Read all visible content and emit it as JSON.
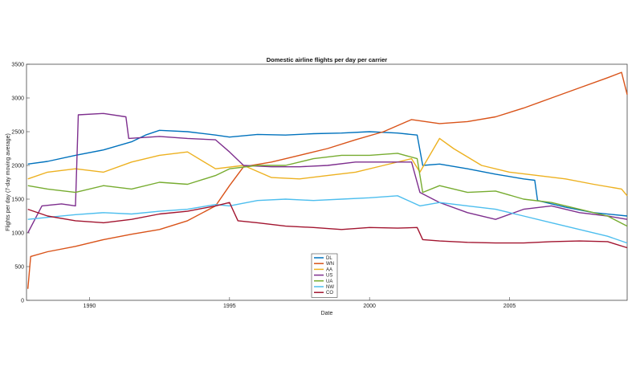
{
  "chart_data": {
    "type": "line",
    "title": "Domestic airline flights per day per carrier",
    "xlabel": "Date",
    "ylabel": "Flights per day (7-day moving average)",
    "xlim": [
      1987.75,
      2009.2
    ],
    "ylim": [
      0,
      3500
    ],
    "xticks": [
      1990,
      1995,
      2000,
      2005
    ],
    "yticks": [
      0,
      500,
      1000,
      1500,
      2000,
      2500,
      3000,
      3500
    ],
    "grid": false,
    "legend_position": "bottom-center",
    "series": [
      {
        "name": "DL",
        "color": "#0072BD",
        "points": [
          [
            1987.8,
            2020
          ],
          [
            1988.5,
            2060
          ],
          [
            1989.5,
            2150
          ],
          [
            1990.5,
            2230
          ],
          [
            1991.5,
            2350
          ],
          [
            1992.0,
            2450
          ],
          [
            1992.5,
            2520
          ],
          [
            1993.5,
            2500
          ],
          [
            1994.5,
            2450
          ],
          [
            1995.0,
            2420
          ],
          [
            1996.0,
            2460
          ],
          [
            1997.0,
            2450
          ],
          [
            1998.0,
            2470
          ],
          [
            1999.0,
            2480
          ],
          [
            2000.0,
            2500
          ],
          [
            2001.0,
            2480
          ],
          [
            2001.7,
            2450
          ],
          [
            2001.9,
            2000
          ],
          [
            2002.5,
            2020
          ],
          [
            2003.5,
            1950
          ],
          [
            2004.5,
            1870
          ],
          [
            2005.5,
            1800
          ],
          [
            2005.9,
            1780
          ],
          [
            2006.0,
            1480
          ],
          [
            2007.0,
            1380
          ],
          [
            2008.0,
            1300
          ],
          [
            2009.2,
            1250
          ]
        ]
      },
      {
        "name": "WN",
        "color": "#D95319",
        "points": [
          [
            1987.8,
            170
          ],
          [
            1987.9,
            650
          ],
          [
            1988.5,
            720
          ],
          [
            1989.5,
            800
          ],
          [
            1990.5,
            900
          ],
          [
            1991.5,
            980
          ],
          [
            1992.5,
            1050
          ],
          [
            1993.5,
            1180
          ],
          [
            1994.5,
            1400
          ],
          [
            1995.0,
            1700
          ],
          [
            1995.5,
            1980
          ],
          [
            1996.5,
            2050
          ],
          [
            1997.5,
            2150
          ],
          [
            1998.5,
            2250
          ],
          [
            1999.5,
            2380
          ],
          [
            2000.5,
            2500
          ],
          [
            2001.5,
            2680
          ],
          [
            2002.5,
            2620
          ],
          [
            2003.5,
            2650
          ],
          [
            2004.5,
            2720
          ],
          [
            2005.5,
            2850
          ],
          [
            2006.5,
            3000
          ],
          [
            2007.5,
            3150
          ],
          [
            2008.5,
            3300
          ],
          [
            2009.0,
            3380
          ],
          [
            2009.2,
            3050
          ]
        ]
      },
      {
        "name": "AA",
        "color": "#EDB120",
        "points": [
          [
            1987.8,
            1800
          ],
          [
            1988.5,
            1900
          ],
          [
            1989.5,
            1950
          ],
          [
            1990.5,
            1900
          ],
          [
            1991.5,
            2050
          ],
          [
            1992.5,
            2150
          ],
          [
            1993.5,
            2200
          ],
          [
            1994.5,
            1950
          ],
          [
            1995.5,
            2000
          ],
          [
            1996.5,
            1820
          ],
          [
            1997.5,
            1800
          ],
          [
            1998.5,
            1850
          ],
          [
            1999.5,
            1900
          ],
          [
            2000.5,
            2000
          ],
          [
            2001.5,
            2100
          ],
          [
            2001.8,
            1900
          ],
          [
            2002.5,
            2400
          ],
          [
            2003.0,
            2250
          ],
          [
            2004.0,
            2000
          ],
          [
            2005.0,
            1900
          ],
          [
            2006.0,
            1850
          ],
          [
            2007.0,
            1800
          ],
          [
            2008.0,
            1720
          ],
          [
            2009.0,
            1650
          ],
          [
            2009.2,
            1550
          ]
        ]
      },
      {
        "name": "US",
        "color": "#7E2F8E",
        "points": [
          [
            1987.8,
            1000
          ],
          [
            1988.3,
            1400
          ],
          [
            1989.0,
            1430
          ],
          [
            1989.5,
            1400
          ],
          [
            1989.6,
            2750
          ],
          [
            1990.5,
            2770
          ],
          [
            1991.3,
            2720
          ],
          [
            1991.4,
            2400
          ],
          [
            1992.5,
            2430
          ],
          [
            1993.5,
            2400
          ],
          [
            1994.5,
            2380
          ],
          [
            1995.0,
            2200
          ],
          [
            1995.5,
            2000
          ],
          [
            1996.5,
            1980
          ],
          [
            1997.5,
            1980
          ],
          [
            1998.5,
            2000
          ],
          [
            1999.5,
            2050
          ],
          [
            2000.5,
            2050
          ],
          [
            2001.5,
            2050
          ],
          [
            2001.8,
            1600
          ],
          [
            2002.5,
            1450
          ],
          [
            2003.5,
            1300
          ],
          [
            2004.5,
            1200
          ],
          [
            2005.5,
            1350
          ],
          [
            2006.5,
            1400
          ],
          [
            2007.5,
            1300
          ],
          [
            2008.5,
            1250
          ],
          [
            2009.2,
            1200
          ]
        ]
      },
      {
        "name": "UA",
        "color": "#77AC30",
        "points": [
          [
            1987.8,
            1700
          ],
          [
            1988.5,
            1650
          ],
          [
            1989.5,
            1600
          ],
          [
            1990.5,
            1700
          ],
          [
            1991.5,
            1650
          ],
          [
            1992.5,
            1750
          ],
          [
            1993.5,
            1720
          ],
          [
            1994.5,
            1850
          ],
          [
            1995.0,
            1950
          ],
          [
            1996.0,
            2000
          ],
          [
            1997.0,
            2000
          ],
          [
            1998.0,
            2100
          ],
          [
            1999.0,
            2150
          ],
          [
            2000.0,
            2150
          ],
          [
            2001.0,
            2180
          ],
          [
            2001.7,
            2100
          ],
          [
            2001.9,
            1600
          ],
          [
            2002.5,
            1700
          ],
          [
            2003.5,
            1600
          ],
          [
            2004.5,
            1620
          ],
          [
            2005.5,
            1500
          ],
          [
            2006.5,
            1450
          ],
          [
            2007.5,
            1350
          ],
          [
            2008.5,
            1250
          ],
          [
            2009.2,
            1100
          ]
        ]
      },
      {
        "name": "NW",
        "color": "#4DBEEE",
        "points": [
          [
            1987.8,
            1200
          ],
          [
            1988.5,
            1230
          ],
          [
            1989.5,
            1270
          ],
          [
            1990.5,
            1300
          ],
          [
            1991.5,
            1280
          ],
          [
            1992.5,
            1320
          ],
          [
            1993.5,
            1350
          ],
          [
            1994.5,
            1420
          ],
          [
            1995.0,
            1400
          ],
          [
            1996.0,
            1480
          ],
          [
            1997.0,
            1500
          ],
          [
            1998.0,
            1480
          ],
          [
            1999.0,
            1500
          ],
          [
            2000.0,
            1520
          ],
          [
            2001.0,
            1550
          ],
          [
            2001.8,
            1400
          ],
          [
            2002.5,
            1450
          ],
          [
            2003.5,
            1400
          ],
          [
            2004.5,
            1350
          ],
          [
            2005.5,
            1250
          ],
          [
            2006.5,
            1150
          ],
          [
            2007.5,
            1050
          ],
          [
            2008.5,
            950
          ],
          [
            2009.2,
            850
          ]
        ]
      },
      {
        "name": "CO",
        "color": "#A2142F",
        "points": [
          [
            1987.8,
            1350
          ],
          [
            1988.5,
            1250
          ],
          [
            1989.5,
            1180
          ],
          [
            1990.5,
            1150
          ],
          [
            1991.5,
            1200
          ],
          [
            1992.5,
            1280
          ],
          [
            1993.5,
            1320
          ],
          [
            1994.5,
            1400
          ],
          [
            1995.0,
            1450
          ],
          [
            1995.3,
            1180
          ],
          [
            1996.0,
            1150
          ],
          [
            1997.0,
            1100
          ],
          [
            1998.0,
            1080
          ],
          [
            1999.0,
            1050
          ],
          [
            2000.0,
            1080
          ],
          [
            2001.0,
            1070
          ],
          [
            2001.7,
            1080
          ],
          [
            2001.9,
            900
          ],
          [
            2002.5,
            880
          ],
          [
            2003.5,
            860
          ],
          [
            2004.5,
            850
          ],
          [
            2005.5,
            850
          ],
          [
            2006.5,
            870
          ],
          [
            2007.5,
            880
          ],
          [
            2008.5,
            870
          ],
          [
            2009.2,
            780
          ]
        ]
      }
    ]
  }
}
